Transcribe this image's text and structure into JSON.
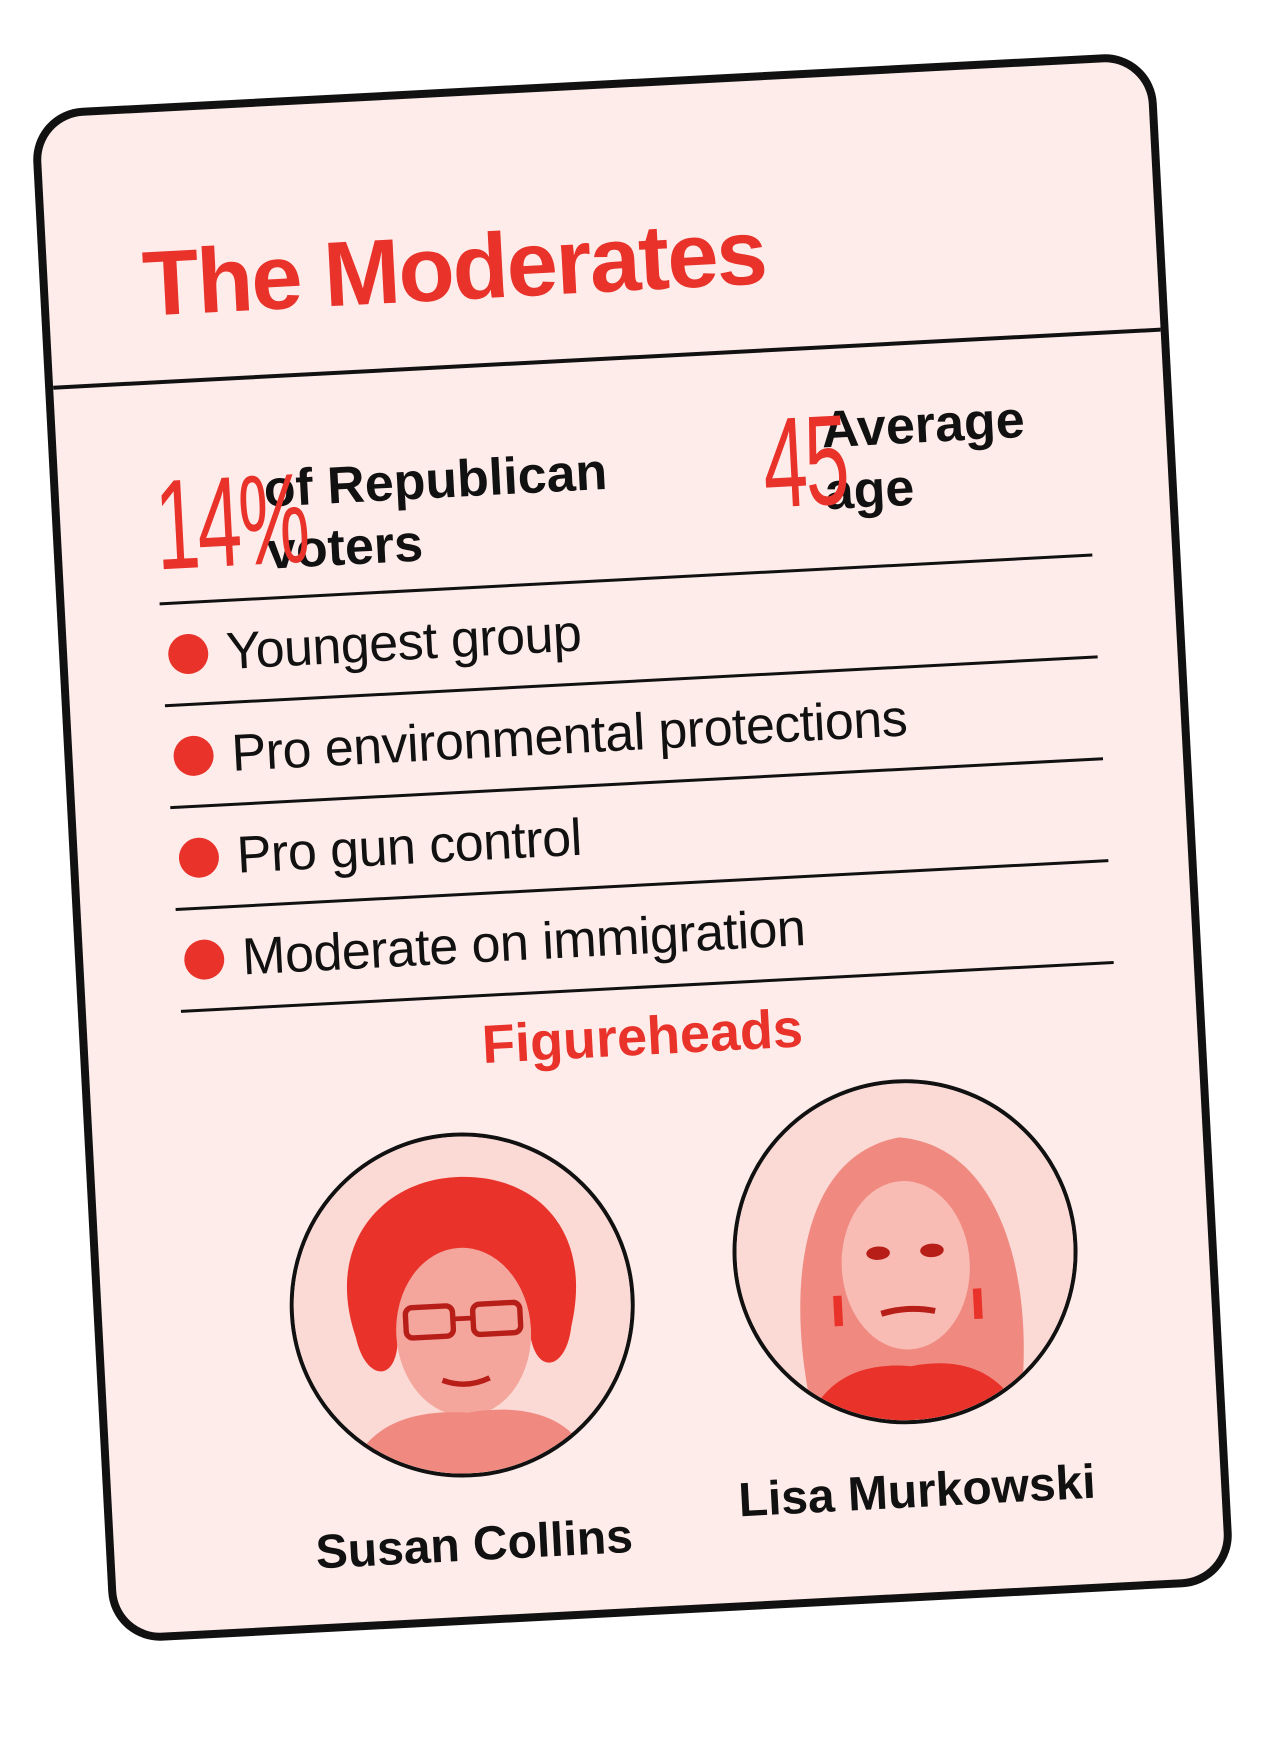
{
  "card": {
    "title": "The Moderates",
    "accent_color": "#e8322a",
    "background_color": "#fdecea"
  },
  "stats": [
    {
      "value": "14%",
      "label": "of Republican voters"
    },
    {
      "value": "45",
      "label": "Average age"
    }
  ],
  "traits": [
    "Youngest group",
    "Pro environmental protections",
    "Pro gun control",
    "Moderate on immigration"
  ],
  "figureheads": {
    "heading": "Figureheads",
    "people": [
      {
        "name": "Susan Collins",
        "portrait_icon": "portrait-icon"
      },
      {
        "name": "Lisa Murkowski",
        "portrait_icon": "portrait-icon"
      }
    ]
  }
}
